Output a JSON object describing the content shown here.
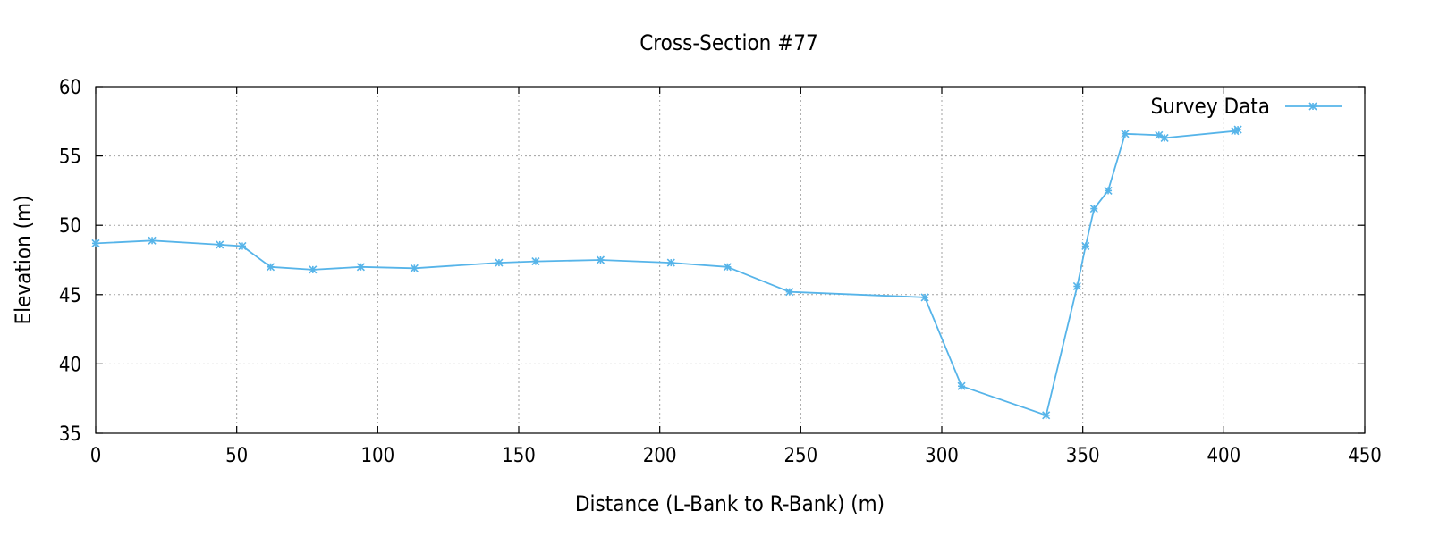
{
  "chart_data": {
    "type": "line",
    "title": "Cross-Section #77",
    "xlabel": "Distance (L-Bank to R-Bank) (m)",
    "ylabel": "Elevation (m)",
    "xlim": [
      0,
      450
    ],
    "ylim": [
      35,
      60
    ],
    "xticks": [
      0,
      50,
      100,
      150,
      200,
      250,
      300,
      350,
      400,
      450
    ],
    "yticks": [
      35,
      40,
      45,
      50,
      55,
      60
    ],
    "grid": true,
    "legend_position": "top-right",
    "series": [
      {
        "name": "Survey Data",
        "color": "#56b4e9",
        "marker": "asterisk",
        "x": [
          0,
          20,
          44,
          52,
          62,
          77,
          94,
          113,
          143,
          156,
          179,
          204,
          224,
          246,
          294,
          307,
          337,
          348,
          351,
          354,
          359,
          365,
          377,
          379,
          404,
          405
        ],
        "y": [
          48.7,
          48.9,
          48.6,
          48.5,
          47.0,
          46.8,
          47.0,
          46.9,
          47.3,
          47.4,
          47.5,
          47.3,
          47.0,
          45.2,
          44.8,
          38.4,
          36.3,
          45.6,
          48.5,
          51.2,
          52.5,
          56.6,
          56.5,
          56.3,
          56.8,
          56.9
        ]
      }
    ]
  }
}
